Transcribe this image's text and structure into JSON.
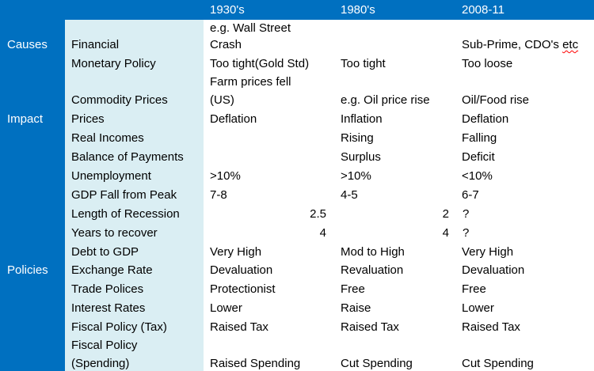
{
  "header": {
    "col1": "1930's",
    "col2": "1980's",
    "col3": "2008-11"
  },
  "sections": {
    "causes": "Causes",
    "impact": "Impact",
    "policies": "Policies"
  },
  "rows": [
    {
      "label": "Financial",
      "c1_line1": "e.g. Wall Street",
      "c1": "Crash",
      "c2": "",
      "c3": "Sub-Prime,  CDO's",
      "c3_extra": "etc"
    },
    {
      "label": "Monetary Policy",
      "c1": "Too tight(Gold Std)",
      "c2": "Too tight",
      "c3": "Too loose"
    },
    {
      "label": "Commodity Prices",
      "c1_line1": "Farm prices fell",
      "c1": "(US)",
      "c2": "e.g. Oil price rise",
      "c3": "Oil/Food  rise"
    },
    {
      "label": "Prices",
      "c1": "Deflation",
      "c2": "Inflation",
      "c3": "Deflation"
    },
    {
      "label": "Real Incomes",
      "c1": "",
      "c2": "Rising",
      "c3": "Falling"
    },
    {
      "label": "Balance of Payments",
      "c1": "",
      "c2": "Surplus",
      "c3": "Deficit"
    },
    {
      "label": "Unemployment",
      "c1": ">10%",
      "c2": ">10%",
      "c3": "<10%"
    },
    {
      "label": "GDP Fall from Peak",
      "c1": "7-8",
      "c2": "4-5",
      "c3": "6-7"
    },
    {
      "label": "Length of Recession",
      "c1": "2.5",
      "c2": "2",
      "c3": "?"
    },
    {
      "label": "Years to recover",
      "c1": "4",
      "c2": "4",
      "c3": "?"
    },
    {
      "label": "Debt to GDP",
      "c1": "Very High",
      "c2": "Mod to High",
      "c3": "Very High"
    },
    {
      "label": "Exchange Rate",
      "c1": "Devaluation",
      "c2": "Revaluation",
      "c3": "Devaluation"
    },
    {
      "label": "Trade Polices",
      "c1": "Protectionist",
      "c2": "Free",
      "c3": "Free"
    },
    {
      "label": "Interest Rates",
      "c1": "Lower",
      "c2": "Raise",
      "c3": "Lower"
    },
    {
      "label": "Fiscal Policy (Tax)",
      "c1": "Raised Tax",
      "c2": "Raised Tax",
      "c3": "Raised Tax"
    },
    {
      "label_line1": "Fiscal Policy",
      "label": "(Spending)",
      "c1": "Raised Spending",
      "c2": "Cut Spending",
      "c3": "Cut Spending"
    }
  ]
}
